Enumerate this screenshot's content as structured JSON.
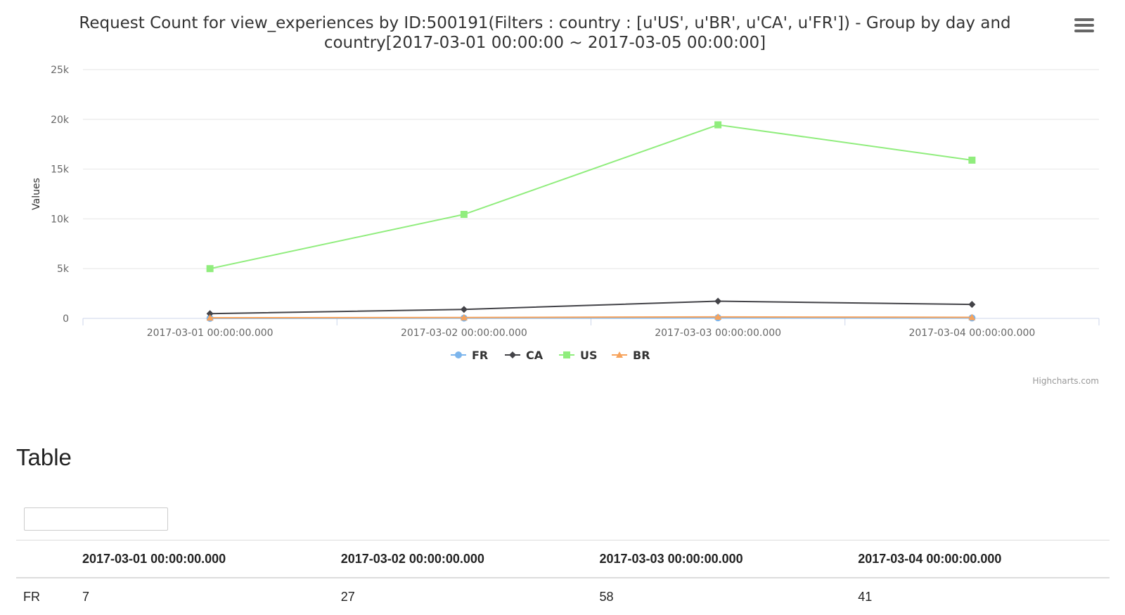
{
  "chart_data": {
    "type": "line",
    "title_line1": "Request Count for view_experiences by ID:500191(Filters : country : [u'US', u'BR', u'CA', u'FR']) - Group by day and",
    "title_line2": "country[2017-03-01 00:00:00 ~ 2017-03-05 00:00:00]",
    "ylabel": "Values",
    "ylim": [
      0,
      25000
    ],
    "yticks": [
      {
        "value": 0,
        "label": "0"
      },
      {
        "value": 5000,
        "label": "5k"
      },
      {
        "value": 10000,
        "label": "10k"
      },
      {
        "value": 15000,
        "label": "15k"
      },
      {
        "value": 20000,
        "label": "20k"
      },
      {
        "value": 25000,
        "label": "25k"
      }
    ],
    "categories": [
      "2017-03-01 00:00:00.000",
      "2017-03-02 00:00:00.000",
      "2017-03-03 00:00:00.000",
      "2017-03-04 00:00:00.000"
    ],
    "series": [
      {
        "name": "FR",
        "color": "#7cb5ec",
        "marker": "circle",
        "values": [
          7,
          27,
          58,
          41
        ]
      },
      {
        "name": "CA",
        "color": "#434348",
        "marker": "diamond",
        "values": [
          480,
          900,
          1730,
          1400
        ]
      },
      {
        "name": "US",
        "color": "#90ed7d",
        "marker": "square",
        "values": [
          5000,
          10450,
          19450,
          15900
        ]
      },
      {
        "name": "BR",
        "color": "#f7a35c",
        "marker": "triangle",
        "values": [
          60,
          90,
          150,
          110
        ]
      }
    ],
    "grid": true,
    "legend_position": "bottom-center",
    "credits": "Highcharts.com"
  },
  "menu": {
    "icon": "hamburger-menu-icon"
  },
  "table_section": {
    "heading": "Table",
    "search_value": "",
    "columns": [
      "",
      "2017-03-01 00:00:00.000",
      "2017-03-02 00:00:00.000",
      "2017-03-03 00:00:00.000",
      "2017-03-04 00:00:00.000"
    ],
    "rows": [
      {
        "label": "FR",
        "cells": [
          "7",
          "27",
          "58",
          "41"
        ]
      }
    ]
  }
}
